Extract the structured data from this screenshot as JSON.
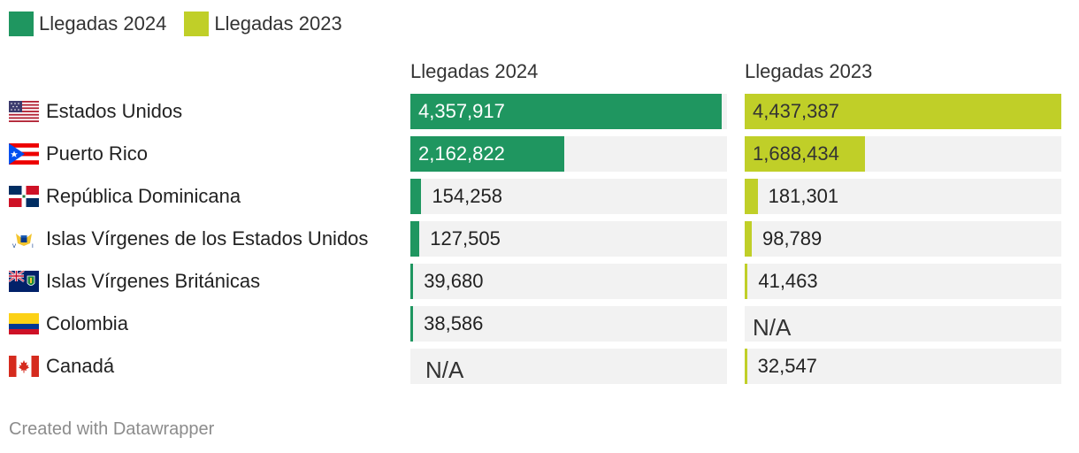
{
  "colors": {
    "series_2024": "#1f9660",
    "series_2023": "#c0cf28",
    "track": "#f2f2f2"
  },
  "chart_data": {
    "type": "bar",
    "title": "",
    "categories": [
      "Estados Unidos",
      "Puerto Rico",
      "República Dominicana",
      "Islas Vírgenes de los Estados Unidos",
      "Islas Vírgenes Británicas",
      "Colombia",
      "Canadá"
    ],
    "flags": [
      "us-flag-icon",
      "puerto-rico-flag-icon",
      "dominican-republic-flag-icon",
      "usvi-flag-icon",
      "bvi-flag-icon",
      "colombia-flag-icon",
      "canada-flag-icon"
    ],
    "series": [
      {
        "name": "Llegadas 2024",
        "values": [
          4357917,
          2162822,
          154258,
          127505,
          39680,
          38586,
          null
        ],
        "labels": [
          "4,357,917",
          "2,162,822",
          "154,258",
          "127,505",
          "39,680",
          "38,586",
          "N/A"
        ]
      },
      {
        "name": "Llegadas 2023",
        "values": [
          4437387,
          1688434,
          181301,
          98789,
          41463,
          null,
          32547
        ],
        "labels": [
          "4,437,387",
          "1,688,434",
          "181,301",
          "98,789",
          "41,463",
          "N/A",
          "32,547"
        ]
      }
    ],
    "xlim": [
      0,
      4437387
    ]
  },
  "legend": [
    "Llegadas 2024",
    "Llegadas 2023"
  ],
  "column_headers": [
    "Llegadas 2024",
    "Llegadas 2023"
  ],
  "footer": "Created with Datawrapper"
}
